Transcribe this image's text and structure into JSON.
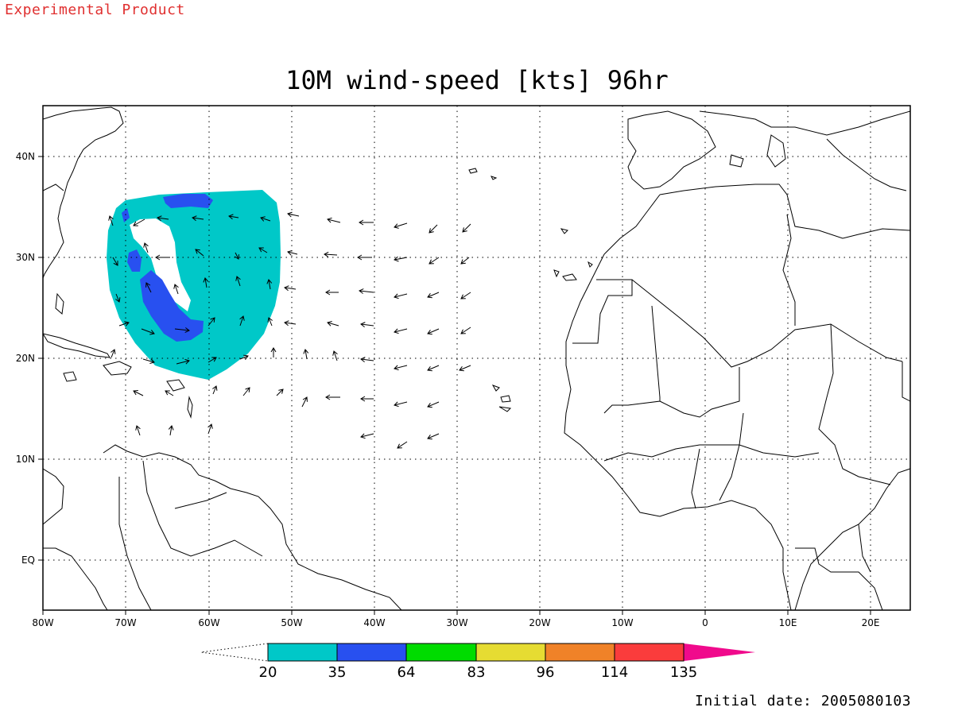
{
  "header": {
    "experimental": "Experimental Product"
  },
  "title": "10M wind-speed [kts] 96hr",
  "footer": {
    "initial_date": "Initial date: 2005080103"
  },
  "map": {
    "lon_range": [
      -80,
      25
    ],
    "lat_range": [
      -5,
      45
    ],
    "lon_labels": [
      "80W",
      "70W",
      "60W",
      "50W",
      "40W",
      "30W",
      "20W",
      "10W",
      "0",
      "10E",
      "20E"
    ],
    "lat_labels": [
      "EQ",
      "10N",
      "20N",
      "30N",
      "40N"
    ],
    "grid": "dotted"
  },
  "colorbar": {
    "levels": [
      "20",
      "35",
      "64",
      "83",
      "96",
      "114",
      "135"
    ],
    "colors": [
      "#00c8c8",
      "#2850f0",
      "#00dc00",
      "#e6dc32",
      "#f08228",
      "#fa3c3c",
      "#f00a8c"
    ],
    "lower_arrow": "open",
    "upper_arrow": "#f00a8c"
  },
  "chart_data": {
    "type": "map",
    "field": "10M wind-speed",
    "units": "kts",
    "forecast_hour": 96,
    "shaded_regions": [
      {
        "level": "20-35",
        "color": "#00c8c8",
        "approx_center": [
          -60,
          27
        ]
      },
      {
        "level": "35-64",
        "color": "#2850f0",
        "approx_center": [
          -62,
          24
        ]
      }
    ],
    "wind_vectors": "easterly trade winds across the tropical Atlantic; cyclonic circulation near 25N 65W"
  }
}
